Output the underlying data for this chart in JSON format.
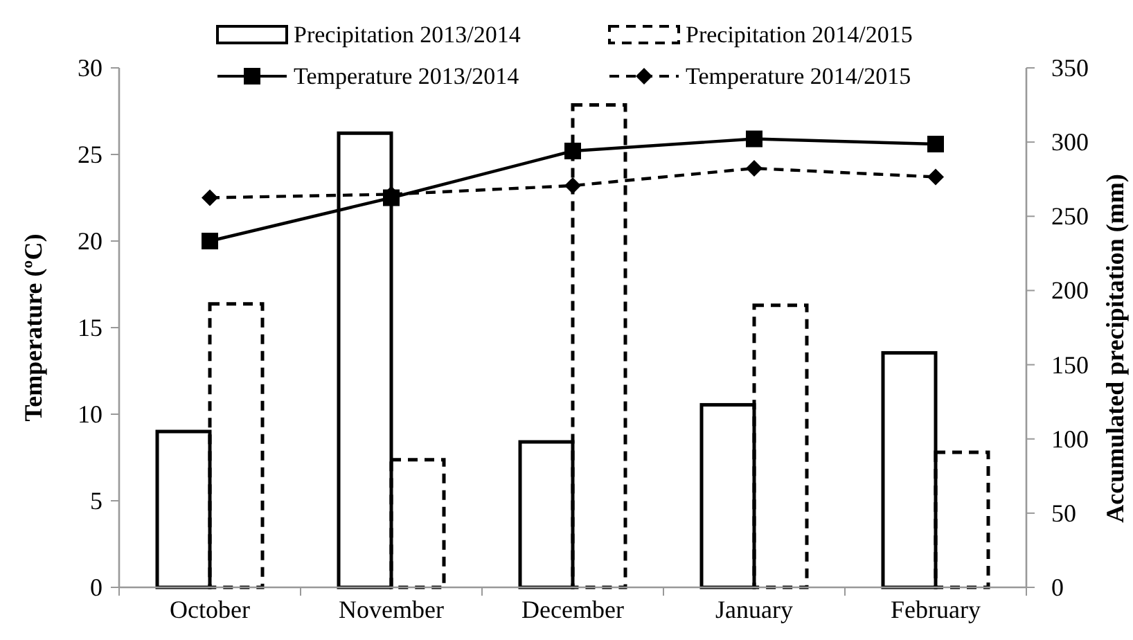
{
  "chart_data": {
    "type": "bar",
    "categories": [
      "October",
      "November",
      "December",
      "January",
      "February"
    ],
    "ylabel": "Temperature (ºC)",
    "y2label": "Accumulated precipitation (mm)",
    "ylim": [
      0,
      30
    ],
    "yticks": [
      0,
      5,
      10,
      15,
      20,
      25,
      30
    ],
    "y2lim": [
      0,
      350
    ],
    "y2ticks": [
      0,
      50,
      100,
      150,
      200,
      250,
      300,
      350
    ],
    "grid": false,
    "legend": "top",
    "series": [
      {
        "name": "Precipitation 2013/2014",
        "axis": "y2",
        "color": "#000000",
        "line_style": "solid",
        "values": [
          105,
          306,
          98,
          123,
          158
        ]
      },
      {
        "name": "Precipitation 2014/2015",
        "axis": "y2",
        "color": "#000000",
        "line_style": "dashed",
        "values": [
          191,
          86,
          325,
          190,
          91
        ]
      },
      {
        "name": "Temperature 2013/2014",
        "type": "line",
        "axis": "y",
        "color": "#000000",
        "line_style": "solid",
        "marker": "square",
        "values": [
          20,
          22.5,
          25.2,
          25.9,
          25.6
        ]
      },
      {
        "name": "Temperature 2014/2015",
        "type": "line",
        "axis": "y",
        "color": "#000000",
        "line_style": "dashed",
        "marker": "diamond",
        "values": [
          22.5,
          22.7,
          23.2,
          24.2,
          23.7
        ]
      }
    ]
  }
}
